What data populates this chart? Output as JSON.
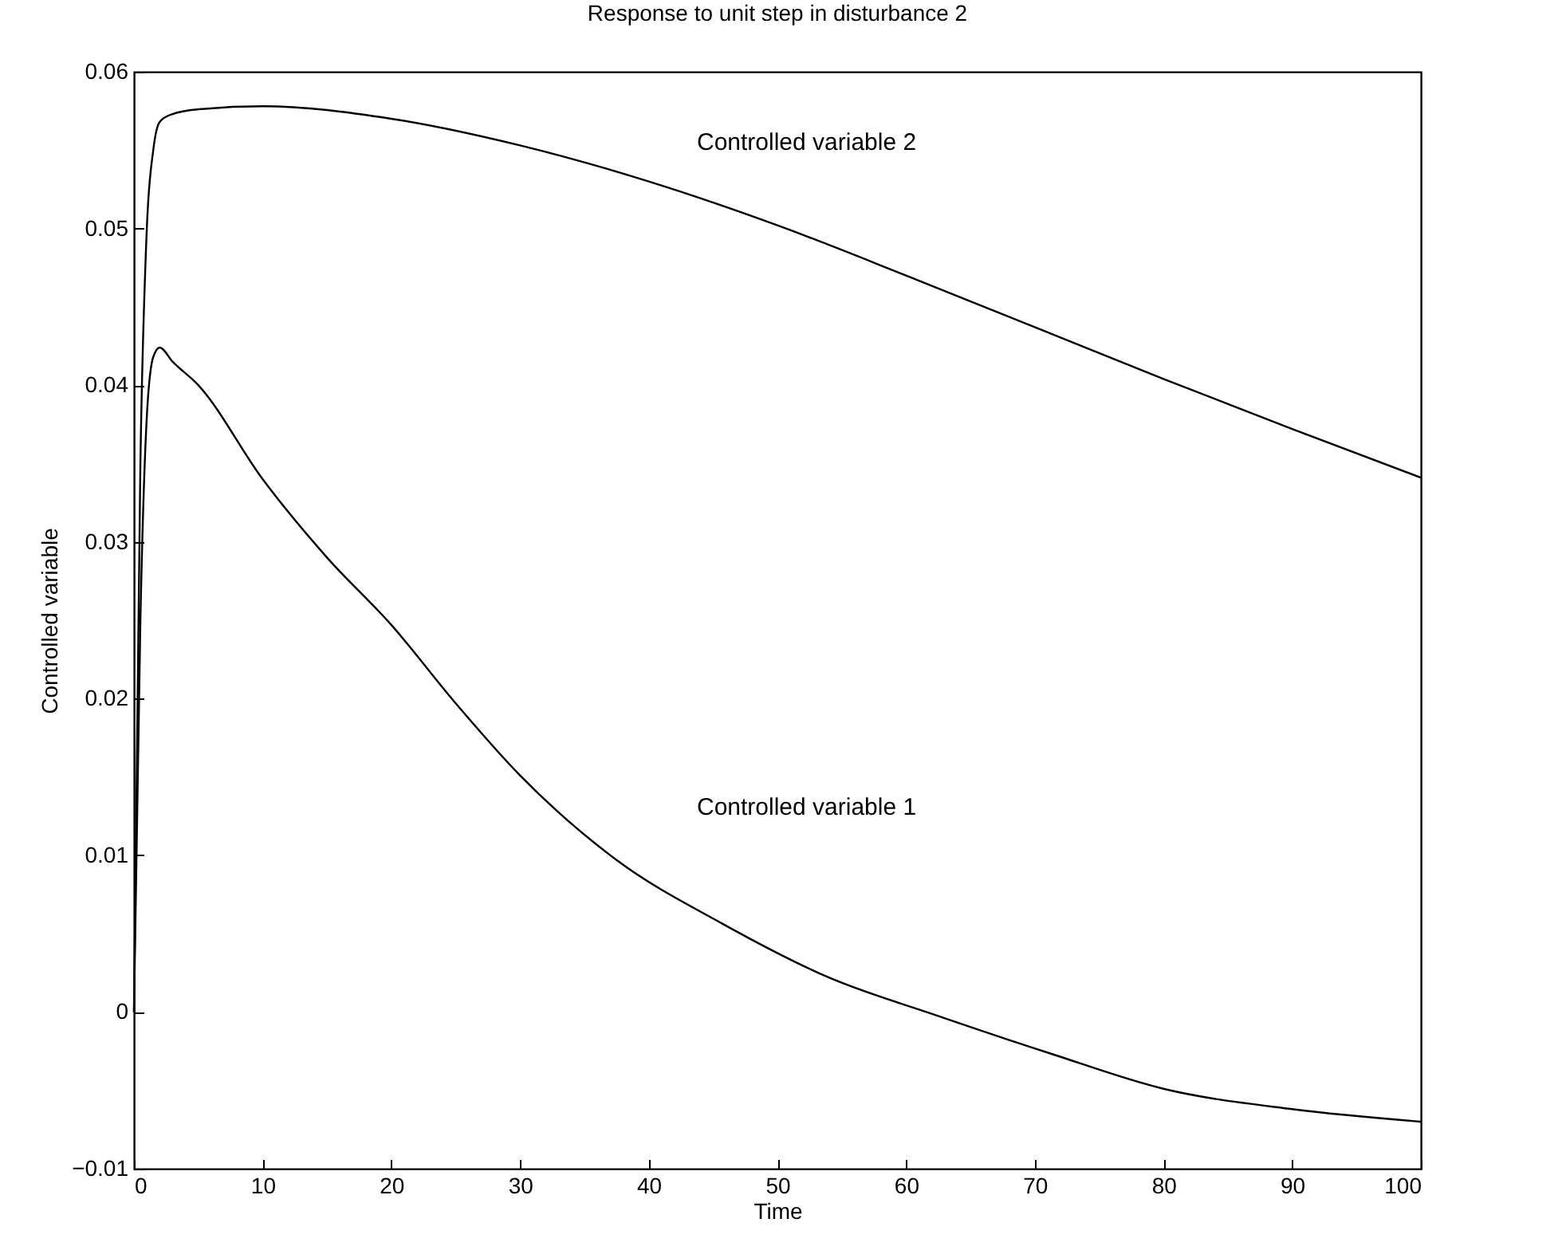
{
  "chart_data": {
    "type": "line",
    "title": "Response to unit step in disturbance 2",
    "xlabel": "Time",
    "ylabel": "Controlled variable",
    "xlim": [
      0,
      100
    ],
    "xticks": [
      0,
      10,
      20,
      30,
      40,
      50,
      60,
      70,
      80,
      90,
      100
    ],
    "ylim": [
      -0.01,
      0.06
    ],
    "yticks": [
      {
        "value": -0.01,
        "label": "−0.01"
      },
      {
        "value": 0,
        "label": "0"
      },
      {
        "value": 0.01,
        "label": "0.01"
      },
      {
        "value": 0.02,
        "label": "0.02"
      },
      {
        "value": 0.03,
        "label": "0.03"
      },
      {
        "value": 0.04,
        "label": "0.04"
      },
      {
        "value": 0.05,
        "label": "0.05"
      },
      {
        "value": 0.06,
        "label": "0.06"
      }
    ],
    "grid": false,
    "legend": false,
    "line_style": "solid",
    "series": [
      {
        "color": "#000000",
        "x": [
          0,
          0.5,
          1,
          1.5,
          2,
          3,
          5,
          10,
          15,
          20,
          25,
          30,
          37.5,
          45.8,
          54,
          62.3,
          71.4,
          80,
          90,
          100
        ],
        "values": [
          0,
          0.025,
          0.038,
          0.0418,
          0.0424,
          0.0415,
          0.04,
          0.034,
          0.029,
          0.0247,
          0.0197,
          0.0151,
          0.0097,
          0.0056,
          0.0022,
          -0.0002,
          -0.0027,
          -0.0049,
          -0.0062,
          -0.007
        ]
      },
      {
        "color": "#000000",
        "x": [
          0,
          0.5,
          1,
          1.5,
          2,
          3,
          5,
          10,
          20,
          30,
          40,
          50,
          60,
          70,
          80,
          90,
          100
        ],
        "values": [
          0,
          0.035,
          0.05,
          0.055,
          0.0568,
          0.0573,
          0.0576,
          0.0578,
          0.057,
          0.0553,
          0.053,
          0.0502,
          0.047,
          0.0437,
          0.0404,
          0.0372,
          0.0341
        ]
      }
    ],
    "annotations": [
      "Controlled variable 2",
      "Controlled variable 1"
    ]
  }
}
